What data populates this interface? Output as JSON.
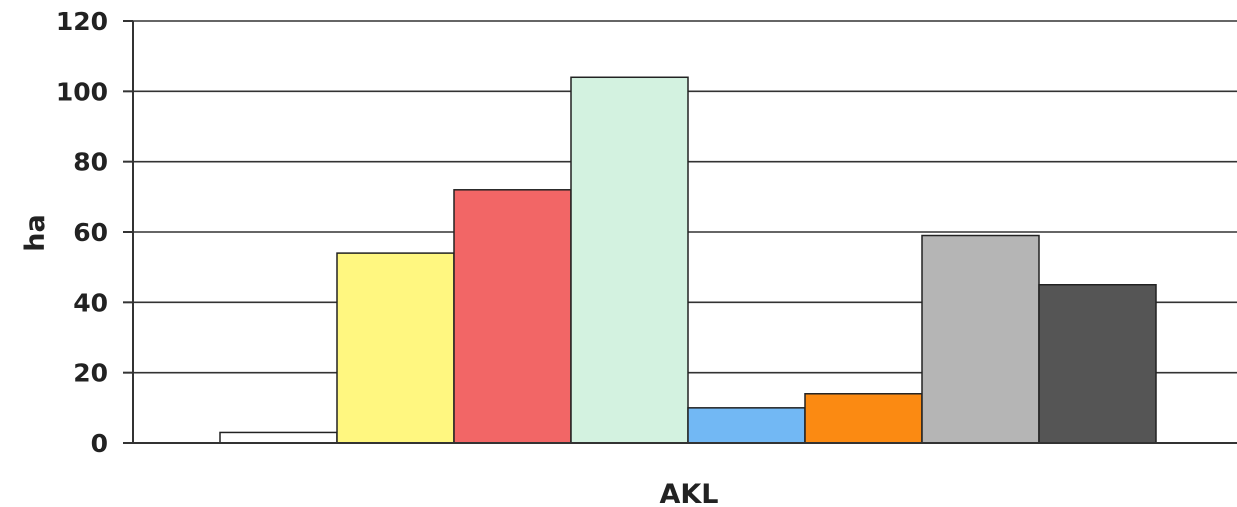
{
  "chart_data": {
    "type": "bar",
    "xlabel": "AKL",
    "ylabel": "ha",
    "ylim": [
      0,
      120
    ],
    "yticks": [
      0,
      20,
      40,
      60,
      80,
      100,
      120
    ],
    "grid": true,
    "legend": "none",
    "categories": [
      "",
      "",
      "",
      "",
      "",
      "",
      "",
      ""
    ],
    "values": [
      3,
      54,
      72,
      104,
      10,
      14,
      59,
      45
    ],
    "colors": [
      "#ffffff",
      "#fff780",
      "#f26666",
      "#d3f2e0",
      "#72b8f4",
      "#fb8a12",
      "#b5b5b5",
      "#555555"
    ]
  }
}
